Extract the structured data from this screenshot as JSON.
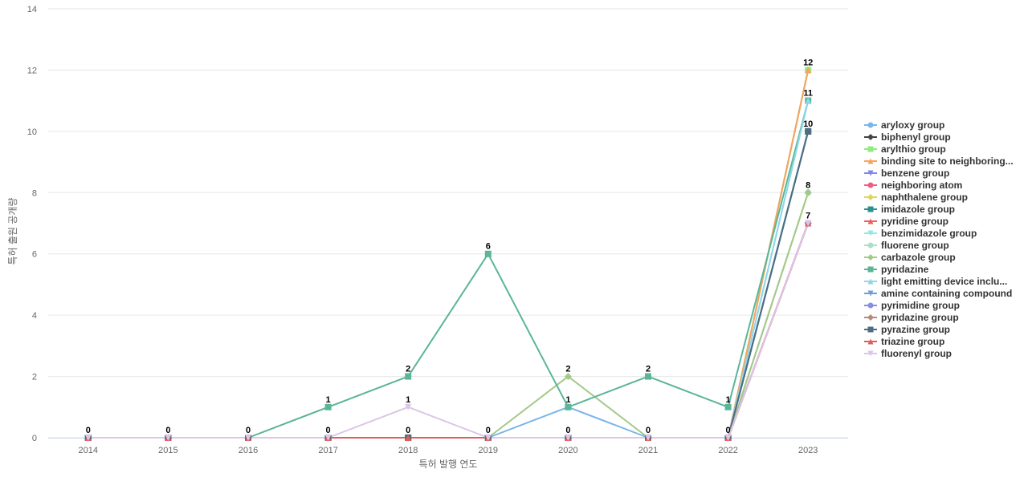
{
  "chart_data": {
    "type": "line",
    "title": "",
    "xlabel": "특허 발행 연도",
    "ylabel": "특허 출원 공개량",
    "x": [
      "2014",
      "2015",
      "2016",
      "2017",
      "2018",
      "2019",
      "2020",
      "2021",
      "2022",
      "2023"
    ],
    "ylim": [
      0,
      14
    ],
    "yticks": [
      0,
      2,
      4,
      6,
      8,
      10,
      12,
      14
    ],
    "grid": true,
    "legend_position": "right",
    "series": [
      {
        "name": "aryloxy group",
        "color": "#7cb5ec",
        "marker": "circle",
        "values": [
          0,
          0,
          0,
          0,
          0,
          0,
          1,
          0,
          0,
          12
        ]
      },
      {
        "name": "biphenyl group",
        "color": "#434348",
        "marker": "diamond",
        "values": [
          0,
          0,
          0,
          0,
          0,
          0,
          0,
          0,
          0,
          10
        ]
      },
      {
        "name": "arylthio group",
        "color": "#90ed7d",
        "marker": "square",
        "values": [
          0,
          0,
          0,
          0,
          0,
          0,
          0,
          0,
          0,
          12
        ]
      },
      {
        "name": "binding site to neighboring...",
        "color": "#f7a35c",
        "marker": "triangle",
        "values": [
          0,
          0,
          0,
          0,
          0,
          0,
          0,
          0,
          0,
          12
        ]
      },
      {
        "name": "benzene group",
        "color": "#8085e9",
        "marker": "triangle-down",
        "values": [
          0,
          0,
          0,
          0,
          0,
          0,
          0,
          0,
          0,
          7
        ]
      },
      {
        "name": "neighboring atom",
        "color": "#f15c80",
        "marker": "circle",
        "values": [
          0,
          0,
          0,
          0,
          0,
          0,
          0,
          0,
          0,
          7
        ]
      },
      {
        "name": "naphthalene group",
        "color": "#e4d354",
        "marker": "diamond",
        "values": [
          0,
          0,
          0,
          0,
          0,
          0,
          0,
          0,
          0,
          8
        ]
      },
      {
        "name": "imidazole group",
        "color": "#2b908f",
        "marker": "square",
        "values": [
          0,
          0,
          0,
          0,
          0,
          0,
          0,
          0,
          0,
          10
        ]
      },
      {
        "name": "pyridine group",
        "color": "#f45b5b",
        "marker": "triangle",
        "values": [
          0,
          0,
          0,
          0,
          0,
          0,
          0,
          0,
          0,
          7
        ]
      },
      {
        "name": "benzimidazole group",
        "color": "#91e8e1",
        "marker": "triangle-down",
        "values": [
          0,
          0,
          0,
          0,
          0,
          0,
          0,
          0,
          0,
          11
        ]
      },
      {
        "name": "fluorene group",
        "color": "#aadfc9",
        "marker": "circle",
        "values": [
          0,
          0,
          0,
          0,
          0,
          0,
          0,
          0,
          0,
          8
        ]
      },
      {
        "name": "carbazole group",
        "color": "#a3c98a",
        "marker": "diamond",
        "values": [
          0,
          0,
          0,
          0,
          0,
          0,
          2,
          0,
          0,
          8
        ]
      },
      {
        "name": "pyridazine",
        "color": "#5bb597",
        "marker": "square",
        "values": [
          0,
          0,
          0,
          1,
          2,
          6,
          1,
          2,
          1,
          11
        ]
      },
      {
        "name": "light emitting device inclu...",
        "color": "#8fd6ea",
        "marker": "triangle",
        "values": [
          0,
          0,
          0,
          0,
          0,
          0,
          0,
          0,
          0,
          11
        ]
      },
      {
        "name": "amine containing compound",
        "color": "#6f9fdb",
        "marker": "triangle-down",
        "values": [
          0,
          0,
          0,
          0,
          0,
          0,
          0,
          0,
          0,
          10
        ]
      },
      {
        "name": "pyrimidine group",
        "color": "#8a8ee0",
        "marker": "circle",
        "values": [
          0,
          0,
          0,
          0,
          0,
          0,
          0,
          0,
          0,
          7
        ]
      },
      {
        "name": "pyridazine group",
        "color": "#b48a7c",
        "marker": "diamond",
        "values": [
          0,
          0,
          0,
          0,
          0,
          0,
          0,
          0,
          0,
          7
        ]
      },
      {
        "name": "pyrazine group",
        "color": "#4e6d80",
        "marker": "square",
        "values": [
          0,
          0,
          0,
          0,
          0,
          0,
          0,
          0,
          0,
          10
        ]
      },
      {
        "name": "triazine group",
        "color": "#e25c5c",
        "marker": "triangle",
        "values": [
          0,
          0,
          0,
          0,
          0,
          0,
          0,
          0,
          0,
          7
        ]
      },
      {
        "name": "fluorenyl group",
        "color": "#dcc5e6",
        "marker": "triangle-down",
        "values": [
          0,
          0,
          0,
          0,
          1,
          0,
          0,
          0,
          0,
          7
        ]
      }
    ],
    "data_labels": [
      {
        "x": "2014",
        "y": 0,
        "text": "0"
      },
      {
        "x": "2015",
        "y": 0,
        "text": "0"
      },
      {
        "x": "2016",
        "y": 0,
        "text": "0"
      },
      {
        "x": "2017",
        "y": 0,
        "text": "0"
      },
      {
        "x": "2017",
        "y": 1,
        "text": "1"
      },
      {
        "x": "2018",
        "y": 0,
        "text": "0"
      },
      {
        "x": "2018",
        "y": 1,
        "text": "1"
      },
      {
        "x": "2018",
        "y": 2,
        "text": "2"
      },
      {
        "x": "2019",
        "y": 0,
        "text": "0"
      },
      {
        "x": "2019",
        "y": 6,
        "text": "6"
      },
      {
        "x": "2020",
        "y": 0,
        "text": "0"
      },
      {
        "x": "2020",
        "y": 1,
        "text": "1"
      },
      {
        "x": "2020",
        "y": 2,
        "text": "2"
      },
      {
        "x": "2021",
        "y": 0,
        "text": "0"
      },
      {
        "x": "2021",
        "y": 2,
        "text": "2"
      },
      {
        "x": "2022",
        "y": 0,
        "text": "0"
      },
      {
        "x": "2022",
        "y": 1,
        "text": "1"
      },
      {
        "x": "2023",
        "y": 7,
        "text": "7"
      },
      {
        "x": "2023",
        "y": 8,
        "text": "8"
      },
      {
        "x": "2023",
        "y": 10,
        "text": "10"
      },
      {
        "x": "2023",
        "y": 11,
        "text": "11"
      },
      {
        "x": "2023",
        "y": 12,
        "text": "12"
      }
    ]
  }
}
